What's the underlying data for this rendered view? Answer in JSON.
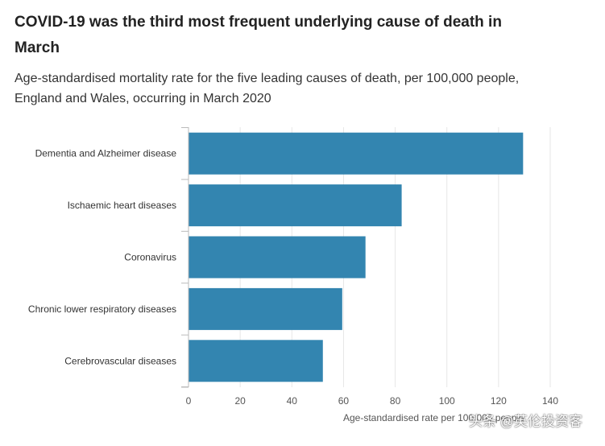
{
  "title": "COVID-19 was the third most frequent underlying cause of death in March",
  "subtitle": "Age-standardised mortality rate for the five leading causes of death, per 100,000 people, England and Wales, occurring in March 2020",
  "watermark": "头条 @英伦投资客",
  "colors": {
    "bar": "#3385b0",
    "grid": "#e6e6e6",
    "axis": "#bbbbbb",
    "text": "#333333"
  },
  "chart_data": {
    "type": "bar",
    "orientation": "horizontal",
    "categories": [
      "Dementia and Alzheimer disease",
      "Ischaemic heart diseases",
      "Coronavirus",
      "Chronic lower respiratory diseases",
      "Cerebrovascular diseases"
    ],
    "values": [
      129.5,
      82.5,
      68.5,
      59.5,
      52
    ],
    "xlabel": "Age-standardised rate per 100,000 people",
    "xlim": [
      0,
      140
    ],
    "xticks": [
      "0",
      "20",
      "40",
      "60",
      "80",
      "100",
      "120",
      "140"
    ],
    "grid": true
  }
}
